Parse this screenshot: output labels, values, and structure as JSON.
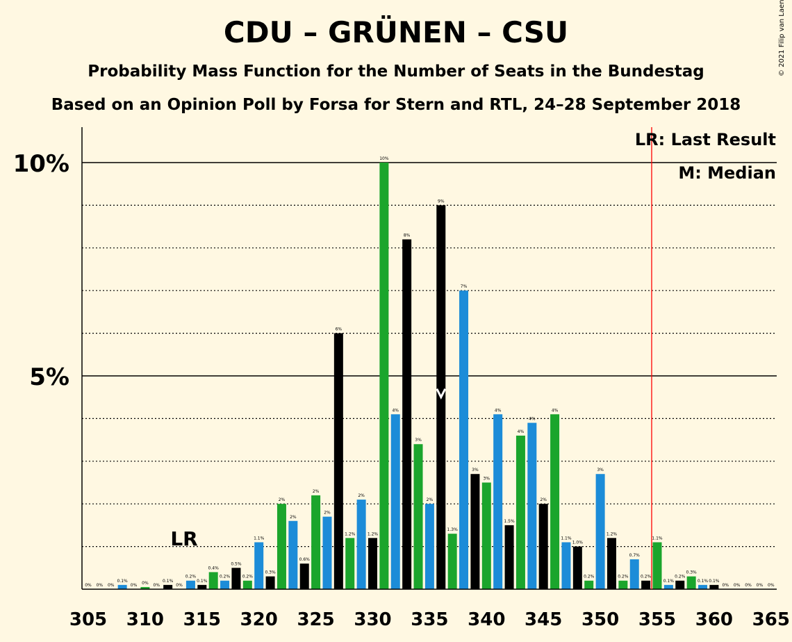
{
  "title": "CDU – GRÜNEN – CSU",
  "subtitle": "Probability Mass Function for the Number of Seats in the Bundestag",
  "subtitle2": "Based on an Opinion Poll by Forsa for Stern and RTL, 24–28 September 2018",
  "copyright": "© 2021 Filip van Laenen",
  "legend": {
    "lr": "LR: Last Result",
    "median": "M: Median"
  },
  "lr_marker": "LR",
  "median_marker": "M",
  "colors": {
    "green": "#1BA52C",
    "blue": "#1C8CD8",
    "black": "#000000",
    "background": "#FFF8E2",
    "last_result_line": "#FF0000"
  },
  "chart_data": {
    "type": "bar",
    "x": [
      305,
      306,
      307,
      308,
      309,
      310,
      311,
      312,
      313,
      314,
      315,
      316,
      317,
      318,
      319,
      320,
      321,
      322,
      323,
      324,
      325,
      326,
      327,
      328,
      329,
      330,
      331,
      332,
      333,
      334,
      335,
      336,
      337,
      338,
      339,
      340,
      341,
      342,
      343,
      344,
      345,
      346,
      347,
      348,
      349,
      350,
      351,
      352,
      353,
      354,
      355,
      356,
      357,
      358,
      359,
      360,
      361,
      362,
      363,
      364,
      365
    ],
    "values": [
      0,
      0,
      0,
      0.1,
      0,
      0.05,
      0,
      0.1,
      0,
      0.2,
      0.1,
      0.4,
      0.2,
      0.5,
      0.2,
      1.1,
      0.3,
      2.0,
      1.6,
      0.6,
      2.2,
      1.7,
      6.0,
      1.2,
      2.1,
      1.2,
      10.0,
      4.1,
      8.2,
      3.4,
      2.0,
      9.0,
      1.3,
      7.0,
      2.7,
      2.5,
      4.1,
      1.5,
      3.6,
      3.9,
      2.0,
      4.1,
      1.1,
      1.0,
      0.2,
      2.7,
      1.2,
      0.2,
      0.7,
      0.2,
      1.1,
      0.1,
      0.2,
      0.3,
      0.1,
      0.1,
      0,
      0,
      0,
      0,
      0
    ],
    "labels": [
      "0%",
      "0%",
      "0%",
      "0.1%",
      "0%",
      "0%",
      "0%",
      "0.1%",
      "0%",
      "0.2%",
      "0.1%",
      "0.4%",
      "0.2%",
      "0.5%",
      "0.2%",
      "1.1%",
      "0.3%",
      "2%",
      "2%",
      "0.6%",
      "2%",
      "2%",
      "6%",
      "1.2%",
      "2%",
      "1.2%",
      "10%",
      "4%",
      "8%",
      "3%",
      "2%",
      "9%",
      "1.3%",
      "7%",
      "3%",
      "3%",
      "4%",
      "1.5%",
      "4%",
      "4%",
      "2%",
      "4%",
      "1.1%",
      "1.0%",
      "0.2%",
      "3%",
      "1.2%",
      "0.2%",
      "0.7%",
      "0.2%",
      "1.1%",
      "0.1%",
      "0.2%",
      "0.3%",
      "0.1%",
      "0.1%",
      "0%",
      "0%",
      "0%",
      "0%",
      "0%"
    ],
    "x_ticks": [
      "305",
      "310",
      "315",
      "320",
      "325",
      "330",
      "335",
      "340",
      "345",
      "350",
      "355",
      "360",
      "365"
    ],
    "y_ticks": [
      "5%",
      "10%"
    ],
    "ylim": [
      0,
      10.8
    ],
    "last_result": 313,
    "median": 336,
    "majority_line": 355,
    "grid": "dotted every 1%, solid at 5% and 10%",
    "legend_position": "top-right"
  }
}
